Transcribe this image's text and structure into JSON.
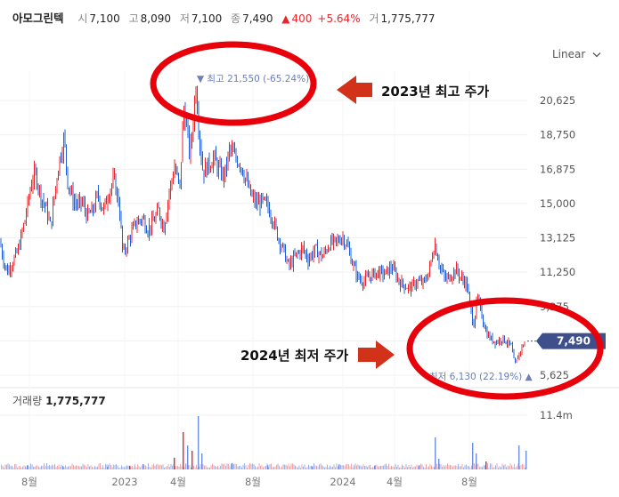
{
  "header": {
    "stock_name": "아모그린텍",
    "open_label": "시",
    "open_value": "7,100",
    "high_label": "고",
    "high_value": "8,090",
    "low_label": "저",
    "low_value": "7,100",
    "close_label": "종",
    "close_value": "7,490",
    "change_arrow": "▲",
    "change_value": "400",
    "change_pct": "+5.64%",
    "volume_label": "거",
    "volume_value": "1,775,777"
  },
  "scale_toggle": {
    "label": "Linear",
    "icon": "chevron-down-icon"
  },
  "volume_panel": {
    "label": "거래량",
    "value": "1,775,777",
    "axis_tick": "11.4m"
  },
  "annotations": {
    "high_note": "2023년 최고 주가",
    "low_note": "2024년 최저 주가"
  },
  "colors": {
    "up": "#e8262b",
    "down": "#1f5fd6",
    "marker": "#6d7fb5",
    "price_tag": "#3e4f8c",
    "highlight_circle": "#e8000b",
    "arrow": "#d2311a",
    "grid": "#eef0f3"
  },
  "chart_data": {
    "type": "candlestick",
    "y_ticks": [
      "20,625",
      "18,750",
      "16,875",
      "15,000",
      "13,125",
      "11,250",
      "9,375",
      "5,625"
    ],
    "ylim": [
      5000,
      22600
    ],
    "x_ticks": [
      "8월",
      "2023",
      "4월",
      "8월",
      "2024",
      "4월",
      "8월"
    ],
    "high_marker": {
      "label": "최고",
      "value": "21,550",
      "pct": "(-65.24%)",
      "arrow": "▼"
    },
    "low_marker": {
      "label": "최저",
      "value": "6,130",
      "pct": "(22.19%)",
      "arrow": "▲"
    },
    "last_price": {
      "value": 7490,
      "label": "7,490"
    },
    "price_path": [
      [
        0,
        12900
      ],
      [
        4,
        11900
      ],
      [
        8,
        11250
      ],
      [
        13,
        11700
      ],
      [
        20,
        12400
      ],
      [
        28,
        14100
      ],
      [
        36,
        16300
      ],
      [
        40,
        16600
      ],
      [
        46,
        15400
      ],
      [
        52,
        14700
      ],
      [
        57,
        13700
      ],
      [
        61,
        15400
      ],
      [
        66,
        17200
      ],
      [
        72,
        18600
      ],
      [
        76,
        16200
      ],
      [
        82,
        15200
      ],
      [
        88,
        14900
      ],
      [
        92,
        15100
      ],
      [
        98,
        14300
      ],
      [
        104,
        14600
      ],
      [
        110,
        15500
      ],
      [
        116,
        14600
      ],
      [
        122,
        15600
      ],
      [
        128,
        16300
      ],
      [
        134,
        14900
      ],
      [
        138,
        12200
      ],
      [
        146,
        13200
      ],
      [
        152,
        13900
      ],
      [
        160,
        14200
      ],
      [
        166,
        13600
      ],
      [
        172,
        14000
      ],
      [
        178,
        14600
      ],
      [
        184,
        13700
      ],
      [
        190,
        15600
      ],
      [
        196,
        17000
      ],
      [
        202,
        15800
      ],
      [
        206,
        20200
      ],
      [
        210,
        19200
      ],
      [
        213,
        17600
      ],
      [
        216,
        19000
      ],
      [
        220,
        21550
      ],
      [
        224,
        18600
      ],
      [
        228,
        16700
      ],
      [
        234,
        17100
      ],
      [
        240,
        17500
      ],
      [
        246,
        16800
      ],
      [
        252,
        16500
      ],
      [
        258,
        18000
      ],
      [
        264,
        17500
      ],
      [
        270,
        17200
      ],
      [
        276,
        16300
      ],
      [
        282,
        15400
      ],
      [
        288,
        15000
      ],
      [
        294,
        15100
      ],
      [
        300,
        14900
      ],
      [
        306,
        14200
      ],
      [
        312,
        13200
      ],
      [
        318,
        12500
      ],
      [
        324,
        11550
      ],
      [
        332,
        12150
      ],
      [
        340,
        12550
      ],
      [
        346,
        11950
      ],
      [
        354,
        12500
      ],
      [
        362,
        12100
      ],
      [
        370,
        12800
      ],
      [
        378,
        12900
      ],
      [
        384,
        13200
      ],
      [
        390,
        12700
      ],
      [
        396,
        11700
      ],
      [
        402,
        10950
      ],
      [
        408,
        10750
      ],
      [
        416,
        11050
      ],
      [
        424,
        11250
      ],
      [
        432,
        11150
      ],
      [
        440,
        11550
      ],
      [
        448,
        10750
      ],
      [
        456,
        10450
      ],
      [
        462,
        10400
      ],
      [
        468,
        10750
      ],
      [
        476,
        10650
      ],
      [
        482,
        11350
      ],
      [
        488,
        12850
      ],
      [
        494,
        11550
      ],
      [
        500,
        10850
      ],
      [
        506,
        11050
      ],
      [
        512,
        11400
      ],
      [
        518,
        10900
      ],
      [
        524,
        10650
      ],
      [
        528,
        9250
      ],
      [
        532,
        8450
      ],
      [
        536,
        9850
      ],
      [
        540,
        9100
      ],
      [
        546,
        7950
      ],
      [
        552,
        7550
      ],
      [
        558,
        7450
      ],
      [
        564,
        7650
      ],
      [
        570,
        7400
      ],
      [
        574,
        7200
      ],
      [
        578,
        6130
      ],
      [
        582,
        6700
      ],
      [
        586,
        7150
      ],
      [
        590,
        7490
      ]
    ],
    "volume_spikes": [
      [
        30,
        0.08
      ],
      [
        70,
        0.06
      ],
      [
        120,
        0.05
      ],
      [
        145,
        0.07
      ],
      [
        160,
        0.1
      ],
      [
        195,
        0.22
      ],
      [
        205,
        0.7
      ],
      [
        210,
        0.45
      ],
      [
        215,
        0.35
      ],
      [
        222,
        1.0
      ],
      [
        226,
        0.3
      ],
      [
        260,
        0.12
      ],
      [
        300,
        0.08
      ],
      [
        350,
        0.06
      ],
      [
        380,
        0.09
      ],
      [
        420,
        0.07
      ],
      [
        470,
        0.08
      ],
      [
        488,
        0.6
      ],
      [
        492,
        0.2
      ],
      [
        530,
        0.5
      ],
      [
        534,
        0.3
      ],
      [
        545,
        0.15
      ],
      [
        582,
        0.45
      ],
      [
        590,
        0.35
      ]
    ]
  }
}
